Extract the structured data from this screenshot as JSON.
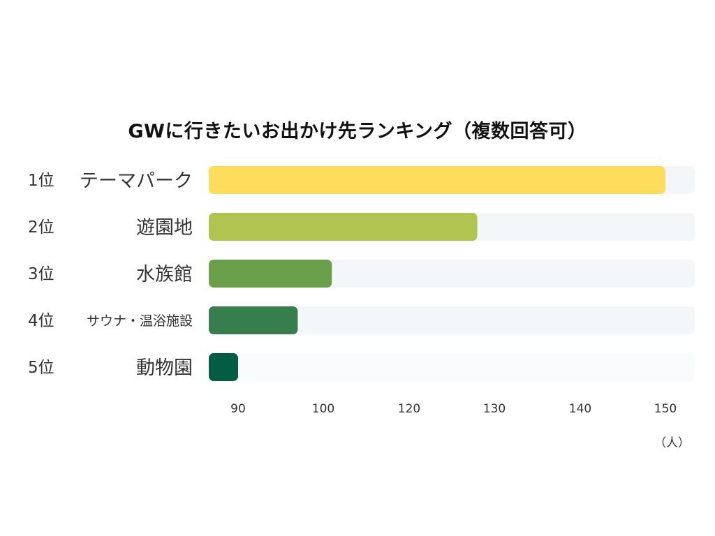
{
  "chart_data": {
    "type": "bar",
    "orientation": "horizontal",
    "title": "GWに行きたいお出かけ先ランキング（複数回答可）",
    "ranks": [
      "1位",
      "2位",
      "3位",
      "4位",
      "5位"
    ],
    "categories": [
      "テーマパーク",
      "遊園地",
      "水族館",
      "サウナ・温浴施設",
      "動物園"
    ],
    "values": [
      150,
      128,
      102,
      97,
      90
    ],
    "xticks": [
      "90",
      "100",
      "120",
      "130",
      "140",
      "150"
    ],
    "unit": "（人）",
    "colors": [
      "#FFDD5C",
      "#B0C44F",
      "#6AA04A",
      "#367E4B",
      "#035D43"
    ],
    "track_color": "#F3F7FA",
    "grid": false,
    "legend": "none"
  }
}
